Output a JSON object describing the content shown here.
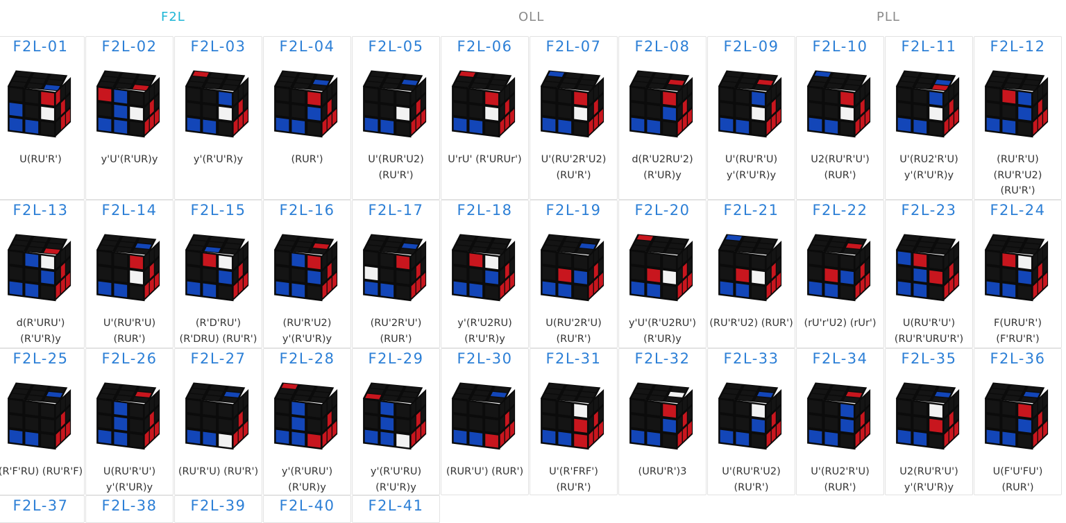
{
  "tabs": [
    {
      "label": "F2L",
      "active": true
    },
    {
      "label": "OLL",
      "active": false
    },
    {
      "label": "PLL",
      "active": false
    }
  ],
  "colors": {
    "accent": "#1cb5d6",
    "title_blue": "#2c7fd6",
    "sticker_black": "#141414",
    "sticker_blue": "#1346b8",
    "sticker_red": "#c8161e",
    "sticker_white": "#f2f2f2"
  },
  "cases": [
    {
      "name": "F2L-01",
      "alg": [
        "U(RU'R')"
      ],
      "top": "KKKKKKKKB",
      "front": "KKRBKWBBK",
      "right": "RKKKRKKRR"
    },
    {
      "name": "F2L-02",
      "alg": [
        "y'U'(R'UR)y"
      ],
      "top": "KKKKKKKKR",
      "front": "RBKKBWBBK",
      "right": "KKKKRKRRR"
    },
    {
      "name": "F2L-03",
      "alg": [
        "y'(R'U'R)y"
      ],
      "top": "RKKKKKKKK",
      "front": "KKBKKWBBK",
      "right": "KKKKRKRRR"
    },
    {
      "name": "F2L-04",
      "alg": [
        "(RUR')"
      ],
      "top": "KKKKKBKKK",
      "front": "KKRKKBBBK",
      "right": "KKKKRKRRR"
    },
    {
      "name": "F2L-05",
      "alg": [
        "U'(RUR'U2)",
        "(RU'R')"
      ],
      "top": "KKKKKBKKK",
      "front": "KKKKKWBBK",
      "right": "KKKKRKRRR"
    },
    {
      "name": "F2L-06",
      "alg": [
        "U'rU' (R'URUr')"
      ],
      "top": "RKKKKKKKK",
      "front": "KKRKKWBBK",
      "right": "KKKKRKRRR"
    },
    {
      "name": "F2L-07",
      "alg": [
        "U'(RU'2R'U2)",
        "(RU'R')"
      ],
      "top": "BKKKKKKKK",
      "front": "KKRKKWBBK",
      "right": "KKKKRKRRR"
    },
    {
      "name": "F2L-08",
      "alg": [
        "d(R'U2RU'2)",
        "(R'UR)y"
      ],
      "top": "KKKKKRKKK",
      "front": "KKRKKBBBK",
      "right": "KKKKRKRRR"
    },
    {
      "name": "F2L-09",
      "alg": [
        "U'(RU'R'U)",
        "y'(R'U'R)y"
      ],
      "top": "KKKKKRKKK",
      "front": "KKBKKWBBK",
      "right": "KKKKRKRRR"
    },
    {
      "name": "F2L-10",
      "alg": [
        "U2(RU'R'U')",
        "(RUR')"
      ],
      "top": "BKKKKKKKK",
      "front": "KKRKKWBBK",
      "right": "KKKKRKRRR"
    },
    {
      "name": "F2L-11",
      "alg": [
        "U'(RU2'R'U)",
        "y'(R'U'R)y"
      ],
      "top": "KKKKKBKKR",
      "front": "KKBKKWBBK",
      "right": "KKKKRKRRR"
    },
    {
      "name": "F2L-12",
      "alg": [
        "(RU'R'U)",
        "(RU'R'U2)",
        "(RU'R')"
      ],
      "top": "KKKKKKKKK",
      "front": "KRBKKBBBK",
      "right": "KKKKRKRRR"
    },
    {
      "name": "F2L-13",
      "alg": [
        "d(R'URU')",
        "(R'U'R)y"
      ],
      "top": "KKKKKKKKR",
      "front": "KBWKKBBBK",
      "right": "KKKKRKRRR"
    },
    {
      "name": "F2L-14",
      "alg": [
        "U'(RU'R'U)",
        "(RUR')"
      ],
      "top": "KKKKKBKKK",
      "front": "KKRKKWBBK",
      "right": "KKKKRKRRR"
    },
    {
      "name": "F2L-15",
      "alg": [
        "(R'D'RU')",
        "(R'DRU) (RU'R')"
      ],
      "top": "KKKKKKKBK",
      "front": "KRWKKBBBK",
      "right": "KKKKRKRRR"
    },
    {
      "name": "F2L-16",
      "alg": [
        "(RU'R'U2)",
        "y'(R'U'R)y"
      ],
      "top": "KKKKKRKKK",
      "front": "KBRKKBBBK",
      "right": "KKKKRKRRR"
    },
    {
      "name": "F2L-17",
      "alg": [
        "(RU'2R'U')",
        "(RUR')"
      ],
      "top": "KKKKKBKKK",
      "front": "KKRWKKBBK",
      "right": "KKKKRKRRR"
    },
    {
      "name": "F2L-18",
      "alg": [
        "y'(R'U2RU)",
        "(R'U'R)y"
      ],
      "top": "KKKKKKKKK",
      "front": "KRWKKBBBK",
      "right": "KKKKRKRRR"
    },
    {
      "name": "F2L-19",
      "alg": [
        "U(RU'2R'U)",
        "(RU'R')"
      ],
      "top": "KKKKKBKKK",
      "front": "KKKKRBBBK",
      "right": "KKKKRKRRR"
    },
    {
      "name": "F2L-20",
      "alg": [
        "y'U'(R'U2RU')",
        "(R'UR)y"
      ],
      "top": "RKKKKKKKK",
      "front": "KKKKRWBBK",
      "right": "KKKKRKRRR"
    },
    {
      "name": "F2L-21",
      "alg": [
        "(RU'R'U2) (RUR')"
      ],
      "top": "BKKKKKKKK",
      "front": "KKKKRWBBK",
      "right": "KKKKRKRRR"
    },
    {
      "name": "F2L-22",
      "alg": [
        "(rU'r'U2) (rUr')"
      ],
      "top": "KKKKKRKKK",
      "front": "KKKKRBBBK",
      "right": "KKKKRKRRR"
    },
    {
      "name": "F2L-23",
      "alg": [
        "U(RU'R'U')",
        "(RU'R'URU'R')"
      ],
      "top": "KKKKKKKKK",
      "front": "BRKKBRBBK",
      "right": "KKKKRKRRR"
    },
    {
      "name": "F2L-24",
      "alg": [
        "F(URU'R')",
        "(F'RU'R')"
      ],
      "top": "KKKKKKKKK",
      "front": "KRWKKBBBK",
      "right": "KKKKRKRRR"
    },
    {
      "name": "F2L-25",
      "alg": [
        "(R'F'RU) (RU'R'F)"
      ],
      "top": "KKKKKBKKK",
      "front": "KKKKKKBBK",
      "right": "KKKKRKRRR"
    },
    {
      "name": "F2L-26",
      "alg": [
        "U(RU'R'U')",
        "y'(R'UR)y"
      ],
      "top": "KKKKKRKKK",
      "front": "KBKKBKBBK",
      "right": "KKKKRKRRR"
    },
    {
      "name": "F2L-27",
      "alg": [
        "(RU'R'U) (RU'R')"
      ],
      "top": "KKKKKBKKK",
      "front": "KKKKKKBBW",
      "right": "KKKKRKRRR"
    },
    {
      "name": "F2L-28",
      "alg": [
        "y'(R'URU')",
        "(R'UR)y"
      ],
      "top": "RKKKKKKKK",
      "front": "KBKKBKBBR",
      "right": "KKKKRKRRR"
    },
    {
      "name": "F2L-29",
      "alg": [
        "y'(R'U'RU)",
        "(R'U'R)y"
      ],
      "top": "KKKKKKRKK",
      "front": "KBKKBKBBW",
      "right": "KKKKRKRRR"
    },
    {
      "name": "F2L-30",
      "alg": [
        "(RUR'U') (RUR')"
      ],
      "top": "KKKKKBKKK",
      "front": "KKKKKKBBR",
      "right": "KKKKRKRRR"
    },
    {
      "name": "F2L-31",
      "alg": [
        "U'(R'FRF')",
        "(RU'R')"
      ],
      "top": "KKKKKKKKK",
      "front": "KKWKKRBBR",
      "right": "KKKKRKRRR"
    },
    {
      "name": "F2L-32",
      "alg": [
        "(URU'R')3"
      ],
      "top": "KKKKKWKKK",
      "front": "KKRKKBBBK",
      "right": "KKKKRKRRR"
    },
    {
      "name": "F2L-33",
      "alg": [
        "U'(RU'R'U2)",
        "(RU'R')"
      ],
      "top": "KKKKKBKKK",
      "front": "KKWKKBBBK",
      "right": "KKKKRKRRR"
    },
    {
      "name": "F2L-34",
      "alg": [
        "U'(RU2'R'U)",
        "(RUR')"
      ],
      "top": "KKKKKRKKK",
      "front": "KKBKKBBBK",
      "right": "KKKKRKRRR"
    },
    {
      "name": "F2L-35",
      "alg": [
        "U2(RU'R'U')",
        "y'(R'U'R)y"
      ],
      "top": "KKKKKBKKK",
      "front": "KKWKKRBBK",
      "right": "KKKKRKRRR"
    },
    {
      "name": "F2L-36",
      "alg": [
        "U(F'U'FU')",
        "(RUR')"
      ],
      "top": "KKKKKBKKK",
      "front": "KKRKKBBBK",
      "right": "KKKKRKRRR"
    },
    {
      "name": "F2L-37",
      "alg": [],
      "top": "KKKKKKKKK",
      "front": "KKKKKKBBK",
      "right": "KKKKRKRRR"
    },
    {
      "name": "F2L-38",
      "alg": [],
      "top": "KKKKKKKKK",
      "front": "KKKKKKBBK",
      "right": "KKKKRKRRR"
    },
    {
      "name": "F2L-39",
      "alg": [],
      "top": "KKKKKKKKK",
      "front": "KKKKKKBBK",
      "right": "KKKKRKRRR"
    },
    {
      "name": "F2L-40",
      "alg": [],
      "top": "KKKKKKKKK",
      "front": "KKKKKKBBK",
      "right": "KKKKRKRRR"
    },
    {
      "name": "F2L-41",
      "alg": [],
      "top": "KKKKKKKKK",
      "front": "KKKKKKBBK",
      "right": "KKKKRKRRR"
    }
  ]
}
